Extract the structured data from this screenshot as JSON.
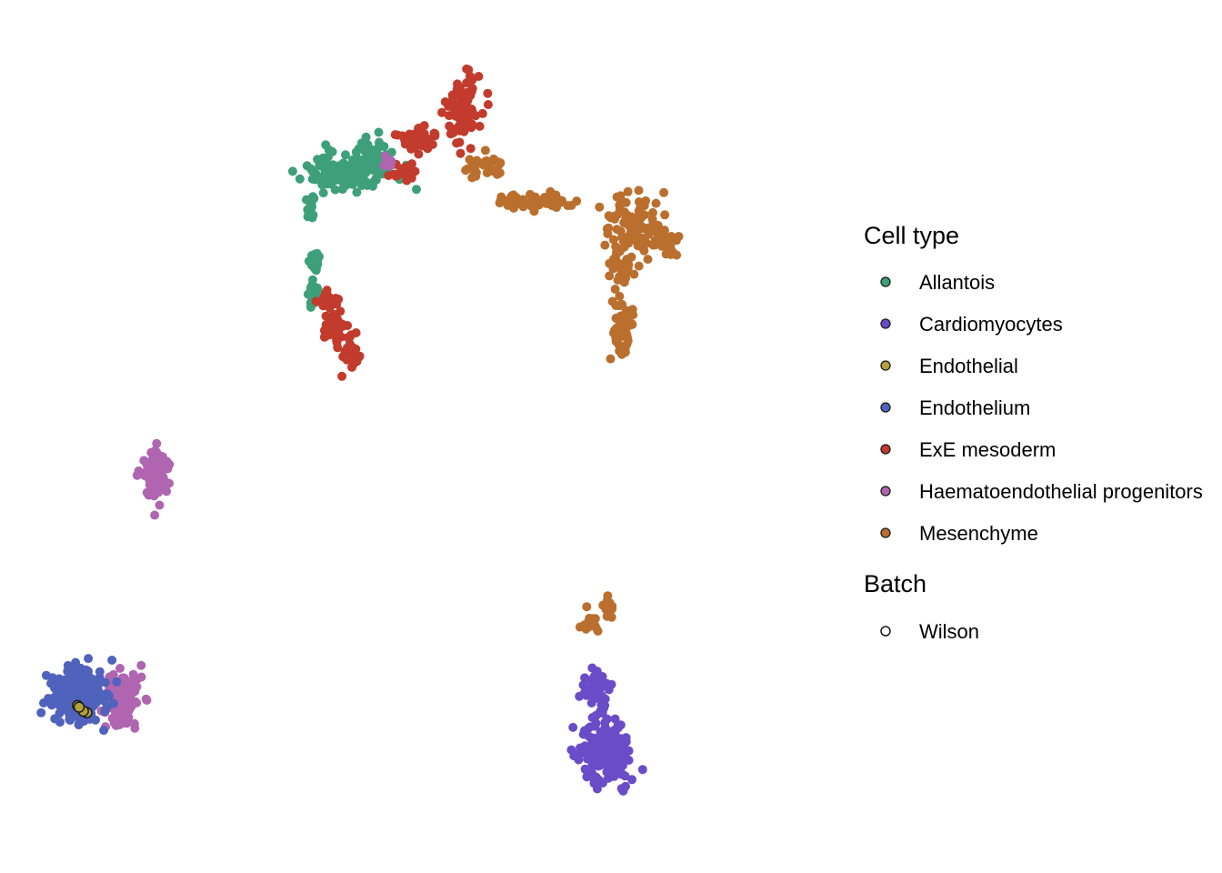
{
  "chart_data": {
    "type": "scatter",
    "title": "",
    "xlabel": "",
    "ylabel": "",
    "axes_visible": false,
    "grid": false,
    "legend_position": "right",
    "legend": {
      "celltype_title": "Cell type",
      "batch_title": "Batch",
      "celltypes": [
        {
          "name": "Allantois",
          "color": "#3E9F7B"
        },
        {
          "name": "Cardiomyocytes",
          "color": "#6A4CC8"
        },
        {
          "name": "Endothelial",
          "color": "#B5A13A"
        },
        {
          "name": "Endothelium",
          "color": "#4F62BC"
        },
        {
          "name": "ExE mesoderm",
          "color": "#C23B2C"
        },
        {
          "name": "Haematoendothelial progenitors",
          "color": "#B065B1"
        },
        {
          "name": "Mesenchyme",
          "color": "#BA6F2E"
        }
      ],
      "batches": [
        {
          "name": "Wilson",
          "marker": "open-circle"
        }
      ]
    },
    "clusters": [
      {
        "celltype": "Allantois",
        "batch": "Wilson",
        "points": 260,
        "seed": 11,
        "regions": [
          [
            4.3,
            -2.3,
            1.2,
            0.55,
            0.55
          ],
          [
            5.2,
            -1.7,
            0.6,
            0.45,
            0.2
          ],
          [
            3.2,
            -3.5,
            0.15,
            0.35,
            0.06
          ],
          [
            3.3,
            -6.2,
            0.15,
            0.6,
            0.14
          ],
          [
            3.4,
            -5.2,
            0.1,
            0.3,
            0.05
          ]
        ]
      },
      {
        "celltype": "ExE mesoderm",
        "batch": "Wilson",
        "points": 240,
        "seed": 23,
        "regions": [
          [
            8.2,
            -0.3,
            0.45,
            1.0,
            0.4
          ],
          [
            6.7,
            -1.2,
            0.6,
            0.35,
            0.15
          ],
          [
            4.5,
            -8.3,
            0.3,
            0.45,
            0.15
          ],
          [
            4.0,
            -7.4,
            0.35,
            0.45,
            0.12
          ],
          [
            3.8,
            -6.6,
            0.3,
            0.3,
            0.08
          ],
          [
            6.2,
            -2.4,
            0.6,
            0.3,
            0.1
          ]
        ]
      },
      {
        "celltype": "Mesenchyme",
        "batch": "Wilson",
        "points": 300,
        "seed": 37,
        "regions": [
          [
            13.6,
            -4.0,
            0.9,
            0.8,
            0.35
          ],
          [
            14.7,
            -4.6,
            0.4,
            0.4,
            0.12
          ],
          [
            13.3,
            -7.4,
            0.35,
            0.8,
            0.18
          ],
          [
            10.6,
            -3.3,
            1.1,
            0.25,
            0.15
          ],
          [
            8.7,
            -2.1,
            0.6,
            0.3,
            0.1
          ],
          [
            13.3,
            -5.5,
            0.5,
            0.6,
            0.1
          ]
        ]
      },
      {
        "celltype": "Haematoendothelial progenitors",
        "batch": "Wilson",
        "points": 220,
        "seed": 41,
        "regions": [
          [
            -1.8,
            -12.3,
            0.45,
            0.8,
            0.4
          ],
          [
            -3.0,
            -19.6,
            0.6,
            0.9,
            0.55
          ],
          [
            5.7,
            -2.0,
            0.15,
            0.25,
            0.05
          ]
        ]
      },
      {
        "celltype": "Endothelium",
        "batch": "Wilson",
        "points": 220,
        "seed": 53,
        "regions": [
          [
            -4.3,
            -19.5,
            0.8,
            0.9,
            1.0
          ]
        ]
      },
      {
        "celltype": "Endothelial",
        "batch": "Wilson",
        "points": 4,
        "seed": 67,
        "regions": [
          [
            -4.3,
            -20.0,
            0.25,
            0.15,
            1.0
          ]
        ]
      },
      {
        "celltype": "Cardiomyocytes",
        "batch": "Wilson",
        "points": 230,
        "seed": 71,
        "regions": [
          [
            12.8,
            -21.3,
            0.75,
            1.1,
            0.8
          ],
          [
            12.5,
            -19.3,
            0.5,
            0.6,
            0.2
          ]
        ]
      },
      {
        "celltype": "Mesenchyme",
        "batch": "Wilson",
        "points": 28,
        "seed": 83,
        "regions": [
          [
            12.3,
            -17.2,
            0.3,
            0.5,
            0.7
          ],
          [
            12.9,
            -16.6,
            0.12,
            0.5,
            0.3
          ]
        ]
      }
    ],
    "xlim": [
      -6,
      20
    ],
    "ylim": [
      -24,
      2
    ]
  }
}
